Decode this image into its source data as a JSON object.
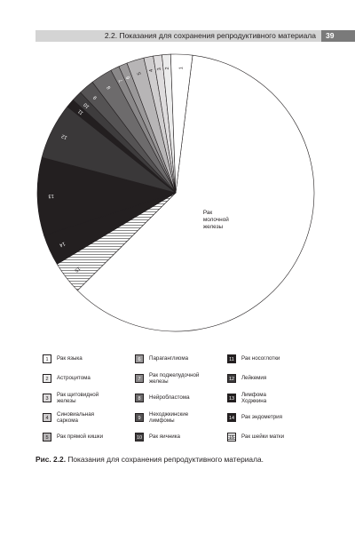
{
  "header": {
    "title": "2.2. Показания для сохранения репродуктивного материала",
    "page": "39"
  },
  "chart_data": {
    "type": "pie",
    "title": "",
    "slices": [
      {
        "label": "Рак молочной железы",
        "value": 60.0,
        "inner_label": "Рак\nмолочной\nжелезы",
        "color": "#ffffff",
        "text": "#231f20"
      },
      {
        "label": "15",
        "value": 3.8,
        "color": "#ffffff",
        "text": "#231f20",
        "hatch": true
      },
      {
        "label": "14",
        "value": 3.6,
        "color": "#231f20",
        "text": "#ffffff"
      },
      {
        "label": "13",
        "value": 9.0,
        "color": "#231f20",
        "text": "#ffffff"
      },
      {
        "label": "12",
        "value": 6.5,
        "color": "#3a3839",
        "text": "#ffffff"
      },
      {
        "label": "11",
        "value": 1.0,
        "color": "#231f20",
        "text": "#ffffff"
      },
      {
        "label": "10",
        "value": 1.2,
        "color": "#3e3c3d",
        "text": "#ffffff"
      },
      {
        "label": "9",
        "value": 1.8,
        "color": "#555354",
        "text": "#ffffff"
      },
      {
        "label": "8",
        "value": 2.5,
        "color": "#6d6b6c",
        "text": "#ffffff"
      },
      {
        "label": "7",
        "value": 1.0,
        "color": "#8a8889",
        "text": "#ffffff"
      },
      {
        "label": "6",
        "value": 1.0,
        "color": "#9a9899",
        "text": "#ffffff"
      },
      {
        "label": "5",
        "value": 2.0,
        "color": "#b7b5b6",
        "text": "#231f20"
      },
      {
        "label": "4",
        "value": 1.1,
        "color": "#cfcdce",
        "text": "#231f20"
      },
      {
        "label": "3",
        "value": 1.0,
        "color": "#dedcdd",
        "text": "#231f20"
      },
      {
        "label": "2",
        "value": 1.0,
        "color": "#ececec",
        "text": "#231f20"
      },
      {
        "label": "1",
        "value": 2.5,
        "color": "#ffffff",
        "text": "#231f20"
      }
    ],
    "legend_placement": "bottom"
  },
  "legend": [
    {
      "num": "1",
      "label": "Рак языка",
      "color": "#ffffff",
      "text": "#231f20"
    },
    {
      "num": "2",
      "label": "Астроцитома",
      "color": "#ececec",
      "text": "#231f20"
    },
    {
      "num": "3",
      "label": "Рак щитовидной\nжелезы",
      "color": "#dedcdd",
      "text": "#231f20"
    },
    {
      "num": "4",
      "label": "Синовиальная\nсаркома",
      "color": "#cfcdce",
      "text": "#231f20"
    },
    {
      "num": "5",
      "label": "Рак прямой кишки",
      "color": "#b7b5b6",
      "text": "#231f20"
    },
    {
      "num": "6",
      "label": "Параганглиома",
      "color": "#9a9899",
      "text": "#ffffff"
    },
    {
      "num": "7",
      "label": "Рак поджелудочной\nжелезы",
      "color": "#8a8889",
      "text": "#ffffff"
    },
    {
      "num": "8",
      "label": "Нейробластома",
      "color": "#6d6b6c",
      "text": "#ffffff"
    },
    {
      "num": "9",
      "label": "Неходжкинские\nлимфомы",
      "color": "#555354",
      "text": "#ffffff"
    },
    {
      "num": "10",
      "label": "Рак яичника",
      "color": "#3e3c3d",
      "text": "#ffffff"
    },
    {
      "num": "11",
      "label": "Рак носоглотки",
      "color": "#231f20",
      "text": "#ffffff"
    },
    {
      "num": "12",
      "label": "Лейкемия",
      "color": "#3a3839",
      "text": "#ffffff"
    },
    {
      "num": "13",
      "label": "Лимфома\nХоджкина",
      "color": "#231f20",
      "text": "#ffffff"
    },
    {
      "num": "14",
      "label": "Рак эндометрия",
      "color": "#231f20",
      "text": "#ffffff"
    },
    {
      "num": "15",
      "label": "Рак шейки матки",
      "color": "#ffffff",
      "text": "#231f20",
      "hatch": true
    }
  ],
  "caption": {
    "prefix": "Рис. 2.2.",
    "text": "Показания для сохранения репродуктивного материала."
  }
}
